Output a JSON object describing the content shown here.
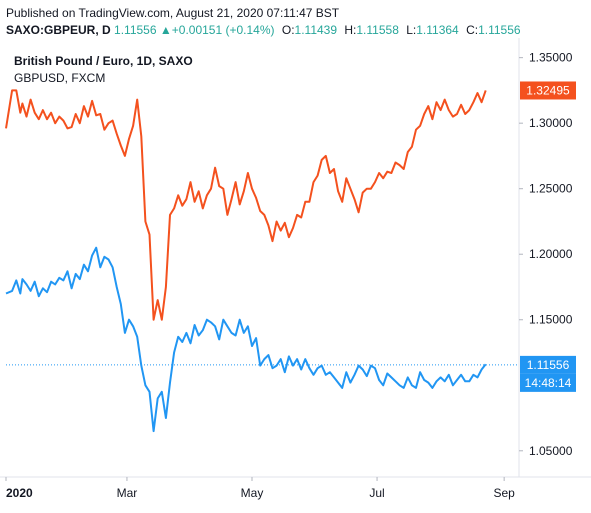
{
  "header": {
    "published": "Published on TradingView.com, August 21, 2020 07:11:47 BST",
    "symbol": "SAXO:GBPEUR, D",
    "last": "1.11556",
    "change_arrow": "▲",
    "change": "+0.00151 (+0.14%)",
    "open_label": "O:",
    "open": "1.11439",
    "high_label": "H:",
    "high": "1.11558",
    "low_label": "L:",
    "low": "1.11364",
    "close_label": "C:",
    "close": "1.11556"
  },
  "legend": {
    "main": "British Pound / Euro, 1D, SAXO",
    "compare": "GBPUSD, FXCM"
  },
  "colors": {
    "gbpeur": "#2196f3",
    "gbpusd": "#f4511e",
    "axis_line": "#e0e3eb",
    "text": "#131722"
  },
  "chart_data": {
    "type": "line",
    "y_axis": {
      "range": [
        1.03,
        1.365
      ],
      "ticks": [
        "1.35000",
        "1.30000",
        "1.25000",
        "1.20000",
        "1.15000",
        "1.05000"
      ],
      "tick_values": [
        1.35,
        1.3,
        1.25,
        1.2,
        1.15,
        1.05
      ]
    },
    "x_axis": {
      "labels": [
        "2020",
        "Mar",
        "May",
        "Jul",
        "Sep"
      ],
      "label_positions": [
        0,
        59,
        120,
        181,
        243
      ]
    },
    "price_labels": [
      {
        "text": "1.32495",
        "value": 1.32495,
        "series": "GBPUSD, FXCM"
      },
      {
        "text": "1.11556",
        "value": 1.11556,
        "series": "SAXO:GBPEUR"
      }
    ],
    "countdown": "14:48:14",
    "series": [
      {
        "name": "GBPUSD, FXCM",
        "x": [
          0,
          3,
          5,
          7,
          8,
          10,
          12,
          14,
          16,
          18,
          20,
          22,
          24,
          26,
          28,
          30,
          32,
          34,
          36,
          38,
          40,
          42,
          44,
          46,
          48,
          50,
          52,
          54,
          56,
          58,
          60,
          62,
          64,
          66,
          68,
          70,
          72,
          74,
          76,
          78,
          80,
          82,
          84,
          86,
          88,
          90,
          92,
          94,
          96,
          98,
          100,
          102,
          104,
          106,
          108,
          110,
          112,
          114,
          116,
          118,
          120,
          122,
          124,
          126,
          128,
          130,
          132,
          134,
          136,
          138,
          140,
          142,
          144,
          146,
          148,
          150,
          152,
          154,
          156,
          158,
          160,
          162,
          164,
          166,
          168,
          170,
          172,
          174,
          176,
          178,
          180,
          182,
          184,
          186,
          188,
          190,
          192,
          194,
          196,
          198,
          200,
          202,
          204,
          206,
          208,
          210,
          212,
          214,
          216,
          218,
          220,
          222,
          224,
          226,
          228,
          230,
          232,
          234
        ],
        "values": [
          1.296,
          1.325,
          1.325,
          1.308,
          1.315,
          1.305,
          1.318,
          1.308,
          1.303,
          1.31,
          1.303,
          1.308,
          1.3,
          1.305,
          1.302,
          1.296,
          1.297,
          1.307,
          1.3,
          1.313,
          1.305,
          1.317,
          1.306,
          1.307,
          1.295,
          1.3,
          1.302,
          1.292,
          1.283,
          1.275,
          1.288,
          1.298,
          1.318,
          1.29,
          1.225,
          1.215,
          1.15,
          1.165,
          1.15,
          1.175,
          1.23,
          1.235,
          1.245,
          1.237,
          1.242,
          1.255,
          1.24,
          1.248,
          1.235,
          1.245,
          1.25,
          1.266,
          1.252,
          1.25,
          1.23,
          1.242,
          1.255,
          1.238,
          1.248,
          1.262,
          1.25,
          1.243,
          1.233,
          1.23,
          1.222,
          1.21,
          1.225,
          1.218,
          1.224,
          1.213,
          1.22,
          1.23,
          1.228,
          1.24,
          1.24,
          1.255,
          1.26,
          1.272,
          1.275,
          1.262,
          1.265,
          1.248,
          1.24,
          1.258,
          1.25,
          1.242,
          1.232,
          1.247,
          1.25,
          1.25,
          1.255,
          1.262,
          1.258,
          1.263,
          1.262,
          1.27,
          1.268,
          1.265,
          1.278,
          1.282,
          1.295,
          1.298,
          1.307,
          1.313,
          1.303,
          1.316,
          1.31,
          1.318,
          1.31,
          1.305,
          1.307,
          1.314,
          1.307,
          1.31,
          1.316,
          1.323,
          1.316,
          1.325
        ]
      },
      {
        "name": "SAXO:GBPEUR",
        "x": [
          0,
          3,
          5,
          7,
          8,
          10,
          12,
          14,
          16,
          18,
          20,
          22,
          24,
          26,
          28,
          30,
          32,
          34,
          36,
          38,
          40,
          42,
          44,
          46,
          48,
          50,
          52,
          54,
          56,
          58,
          60,
          62,
          64,
          66,
          68,
          70,
          72,
          74,
          76,
          78,
          80,
          82,
          84,
          86,
          88,
          90,
          92,
          94,
          96,
          98,
          100,
          102,
          104,
          106,
          108,
          110,
          112,
          114,
          116,
          118,
          120,
          122,
          124,
          126,
          128,
          130,
          132,
          134,
          136,
          138,
          140,
          142,
          144,
          146,
          148,
          150,
          152,
          154,
          156,
          158,
          160,
          162,
          164,
          166,
          168,
          170,
          172,
          174,
          176,
          178,
          180,
          182,
          184,
          186,
          188,
          190,
          192,
          194,
          196,
          198,
          200,
          202,
          204,
          206,
          208,
          210,
          212,
          214,
          216,
          218,
          220,
          222,
          224,
          226,
          228,
          230,
          232,
          234
        ],
        "values": [
          1.17,
          1.172,
          1.18,
          1.17,
          1.181,
          1.177,
          1.172,
          1.179,
          1.168,
          1.174,
          1.171,
          1.179,
          1.177,
          1.182,
          1.18,
          1.187,
          1.174,
          1.185,
          1.181,
          1.192,
          1.187,
          1.199,
          1.205,
          1.19,
          1.198,
          1.196,
          1.19,
          1.175,
          1.162,
          1.14,
          1.15,
          1.145,
          1.137,
          1.115,
          1.1,
          1.095,
          1.065,
          1.09,
          1.095,
          1.075,
          1.102,
          1.125,
          1.137,
          1.133,
          1.14,
          1.132,
          1.146,
          1.138,
          1.142,
          1.15,
          1.148,
          1.145,
          1.135,
          1.15,
          1.145,
          1.14,
          1.138,
          1.15,
          1.14,
          1.145,
          1.13,
          1.136,
          1.115,
          1.12,
          1.123,
          1.113,
          1.115,
          1.12,
          1.11,
          1.122,
          1.115,
          1.12,
          1.112,
          1.12,
          1.113,
          1.108,
          1.113,
          1.115,
          1.108,
          1.11,
          1.106,
          1.102,
          1.098,
          1.11,
          1.102,
          1.108,
          1.115,
          1.112,
          1.107,
          1.115,
          1.113,
          1.104,
          1.1,
          1.109,
          1.106,
          1.103,
          1.1,
          1.098,
          1.106,
          1.1,
          1.098,
          1.11,
          1.104,
          1.102,
          1.098,
          1.103,
          1.106,
          1.103,
          1.108,
          1.1,
          1.104,
          1.108,
          1.103,
          1.103,
          1.108,
          1.106,
          1.112,
          1.116
        ]
      }
    ]
  }
}
